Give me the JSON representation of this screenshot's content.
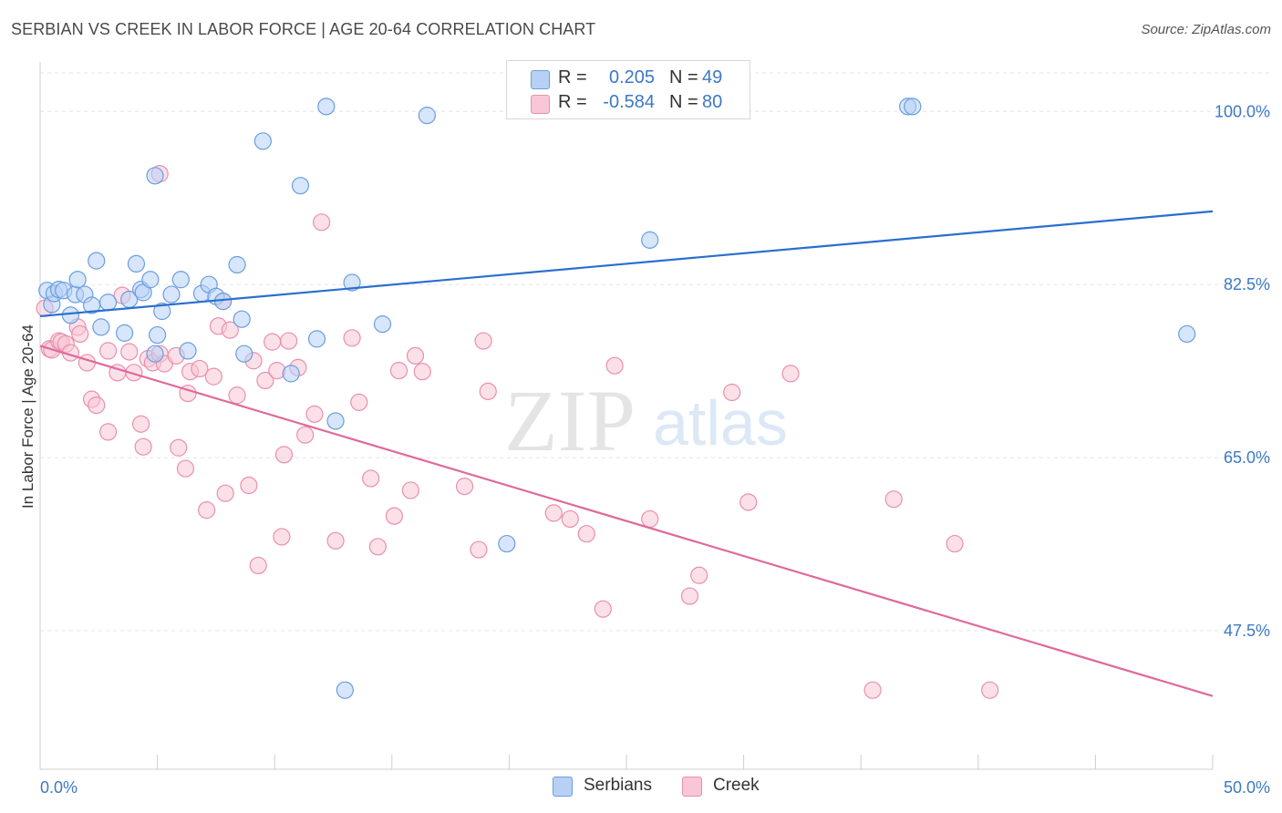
{
  "header": {
    "title": "SERBIAN VS CREEK IN LABOR FORCE | AGE 20-64 CORRELATION CHART",
    "source": "Source: ZipAtlas.com"
  },
  "legend": {
    "rows": [
      {
        "r_label": "R =",
        "r_value": "0.205",
        "n_label": "N =",
        "n_value": "49"
      },
      {
        "r_label": "R =",
        "r_value": "-0.584",
        "n_label": "N =",
        "n_value": "80"
      }
    ]
  },
  "bottom_legend": {
    "serbians": "Serbians",
    "creek": "Creek"
  },
  "watermark": {
    "part1": "ZIP",
    "part2": "atlas"
  },
  "colors": {
    "serbians_fill": "#b7d1f5",
    "serbians_stroke": "#6b9de0",
    "serbians_line": "#2a6fce",
    "creek_fill": "#f8c6d6",
    "creek_stroke": "#ea8fae",
    "creek_line": "#e0699a",
    "tick_text": "#3d78c6",
    "grid": "#e4e4e4"
  },
  "chart_data": {
    "type": "scatter",
    "title": "SERBIAN VS CREEK IN LABOR FORCE | AGE 20-64 CORRELATION CHART",
    "xlabel": "",
    "ylabel": "In Labor Force | Age 20-64",
    "xlim": [
      0,
      50
    ],
    "ylim": [
      33.5,
      105
    ],
    "x_tick_labels": [
      {
        "value": 0,
        "label": "0.0%"
      },
      {
        "value": 50,
        "label": "50.0%"
      }
    ],
    "y_ticks": [
      {
        "value": 47.5,
        "label": "47.5%"
      },
      {
        "value": 65.0,
        "label": "65.0%"
      },
      {
        "value": 82.5,
        "label": "82.5%"
      },
      {
        "value": 100.0,
        "label": "100.0%"
      }
    ],
    "grid": true,
    "legend_position": "top-center",
    "series": [
      {
        "name": "Serbians",
        "r": 0.205,
        "n": 49,
        "trend": {
          "x": [
            0,
            50
          ],
          "y": [
            79.3,
            89.9
          ]
        },
        "points": [
          [
            0.3,
            81.9
          ],
          [
            0.5,
            80.5
          ],
          [
            0.6,
            81.6
          ],
          [
            0.8,
            82.0
          ],
          [
            1.0,
            81.9
          ],
          [
            1.3,
            79.4
          ],
          [
            1.5,
            81.5
          ],
          [
            1.6,
            83.0
          ],
          [
            1.9,
            81.5
          ],
          [
            2.2,
            80.4
          ],
          [
            2.4,
            84.9
          ],
          [
            2.6,
            78.2
          ],
          [
            2.9,
            80.7
          ],
          [
            3.6,
            77.6
          ],
          [
            3.8,
            81.0
          ],
          [
            4.1,
            84.6
          ],
          [
            4.3,
            82.0
          ],
          [
            4.4,
            81.7
          ],
          [
            4.7,
            83.0
          ],
          [
            4.9,
            75.5
          ],
          [
            5.2,
            79.8
          ],
          [
            5.6,
            81.5
          ],
          [
            6.0,
            83.0
          ],
          [
            6.3,
            75.8
          ],
          [
            6.9,
            81.6
          ],
          [
            7.2,
            82.5
          ],
          [
            7.5,
            81.3
          ],
          [
            7.8,
            80.8
          ],
          [
            8.4,
            84.5
          ],
          [
            8.6,
            79.0
          ],
          [
            8.7,
            75.5
          ],
          [
            9.5,
            97.0
          ],
          [
            10.7,
            73.5
          ],
          [
            11.1,
            92.5
          ],
          [
            11.8,
            77.0
          ],
          [
            12.2,
            100.5
          ],
          [
            12.6,
            68.7
          ],
          [
            13.3,
            82.7
          ],
          [
            14.6,
            78.5
          ],
          [
            16.5,
            99.6
          ],
          [
            19.9,
            56.3
          ],
          [
            20.8,
            100.5
          ],
          [
            26.0,
            87.0
          ],
          [
            37.0,
            100.5
          ],
          [
            37.2,
            100.5
          ],
          [
            48.9,
            77.5
          ],
          [
            13.0,
            41.5
          ],
          [
            4.9,
            93.5
          ],
          [
            5.0,
            77.4
          ]
        ]
      },
      {
        "name": "Creek",
        "r": -0.584,
        "n": 80,
        "trend": {
          "x": [
            0,
            50
          ],
          "y": [
            76.3,
            40.9
          ]
        },
        "points": [
          [
            0.2,
            80.1
          ],
          [
            0.4,
            76.0
          ],
          [
            0.5,
            75.9
          ],
          [
            0.8,
            76.8
          ],
          [
            0.9,
            76.7
          ],
          [
            1.1,
            76.5
          ],
          [
            1.3,
            75.6
          ],
          [
            1.6,
            78.2
          ],
          [
            1.7,
            77.5
          ],
          [
            2.0,
            74.6
          ],
          [
            2.2,
            70.9
          ],
          [
            2.4,
            70.3
          ],
          [
            2.9,
            67.6
          ],
          [
            2.9,
            75.8
          ],
          [
            3.3,
            73.6
          ],
          [
            3.5,
            81.4
          ],
          [
            3.8,
            75.7
          ],
          [
            4.0,
            73.6
          ],
          [
            4.3,
            68.4
          ],
          [
            4.4,
            66.1
          ],
          [
            4.6,
            75.0
          ],
          [
            4.8,
            74.6
          ],
          [
            5.1,
            75.5
          ],
          [
            5.1,
            93.7
          ],
          [
            5.3,
            74.5
          ],
          [
            5.8,
            75.3
          ],
          [
            5.9,
            66.0
          ],
          [
            6.2,
            63.9
          ],
          [
            6.3,
            71.5
          ],
          [
            6.4,
            73.7
          ],
          [
            6.8,
            74.0
          ],
          [
            7.1,
            59.7
          ],
          [
            7.4,
            73.2
          ],
          [
            7.6,
            78.3
          ],
          [
            7.8,
            80.8
          ],
          [
            7.9,
            61.4
          ],
          [
            8.1,
            77.9
          ],
          [
            8.4,
            71.3
          ],
          [
            8.9,
            62.2
          ],
          [
            9.1,
            74.8
          ],
          [
            9.3,
            54.1
          ],
          [
            9.6,
            72.8
          ],
          [
            9.9,
            76.7
          ],
          [
            10.1,
            73.8
          ],
          [
            10.3,
            57.0
          ],
          [
            10.4,
            65.3
          ],
          [
            10.6,
            76.8
          ],
          [
            11.0,
            74.1
          ],
          [
            11.3,
            67.3
          ],
          [
            11.7,
            69.4
          ],
          [
            12.0,
            88.8
          ],
          [
            12.6,
            56.6
          ],
          [
            13.3,
            77.1
          ],
          [
            13.6,
            70.6
          ],
          [
            14.1,
            62.9
          ],
          [
            14.4,
            56.0
          ],
          [
            15.1,
            59.1
          ],
          [
            15.3,
            73.8
          ],
          [
            15.8,
            61.7
          ],
          [
            16.0,
            75.3
          ],
          [
            16.3,
            73.7
          ],
          [
            18.1,
            62.1
          ],
          [
            18.7,
            55.7
          ],
          [
            18.9,
            76.8
          ],
          [
            19.1,
            71.7
          ],
          [
            21.9,
            59.4
          ],
          [
            22.6,
            58.8
          ],
          [
            23.3,
            57.3
          ],
          [
            24.0,
            49.7
          ],
          [
            24.5,
            74.3
          ],
          [
            26.0,
            58.8
          ],
          [
            27.7,
            51.0
          ],
          [
            28.1,
            53.1
          ],
          [
            29.5,
            71.6
          ],
          [
            30.2,
            60.5
          ],
          [
            32.0,
            73.5
          ],
          [
            35.5,
            41.5
          ],
          [
            36.4,
            60.8
          ],
          [
            39.0,
            56.3
          ],
          [
            40.5,
            41.5
          ]
        ]
      }
    ]
  }
}
